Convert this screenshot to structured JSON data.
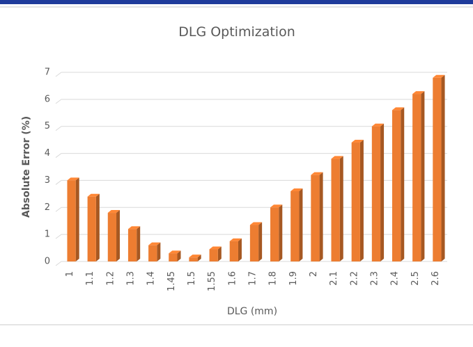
{
  "chart_data": {
    "type": "bar",
    "title": "DLG Optimization",
    "x_label": "DLG (mm)",
    "y_label": "Absolute Error (%)",
    "categories": [
      "1",
      "1.1",
      "1.2",
      "1.3",
      "1.4",
      "1.45",
      "1.5",
      "1.55",
      "1.6",
      "1.7",
      "1.8",
      "1.9",
      "2",
      "2.1",
      "2.2",
      "2.3",
      "2.4",
      "2.5",
      "2.6"
    ],
    "values": [
      3.0,
      2.4,
      1.8,
      1.2,
      0.6,
      0.3,
      0.15,
      0.45,
      0.75,
      1.35,
      2.0,
      2.6,
      3.2,
      3.8,
      4.4,
      5.0,
      5.6,
      6.2,
      6.8
    ],
    "color": "#ed7d31",
    "ylim": [
      0,
      7
    ],
    "yticks": [
      0,
      1,
      2,
      3,
      4,
      5,
      6,
      7
    ],
    "grid": true
  }
}
